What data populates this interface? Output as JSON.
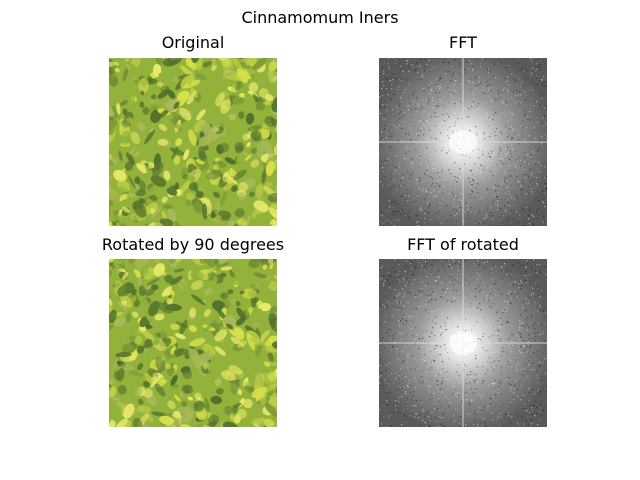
{
  "figure": {
    "title": "Cinnamomum Iners"
  },
  "panels": [
    {
      "title": "Original",
      "kind": "photo"
    },
    {
      "title": "FFT",
      "kind": "spectrum"
    },
    {
      "title": "Rotated by 90 degrees",
      "kind": "photo-rotated"
    },
    {
      "title": "FFT of rotated",
      "kind": "spectrum"
    }
  ],
  "colors": {
    "foliage_dark": "#5c7a2e",
    "foliage_mid": "#93b23c",
    "foliage_light": "#d6e04a",
    "spectrum_bg": "#5a5a5a",
    "spectrum_center": "#ffffff"
  }
}
